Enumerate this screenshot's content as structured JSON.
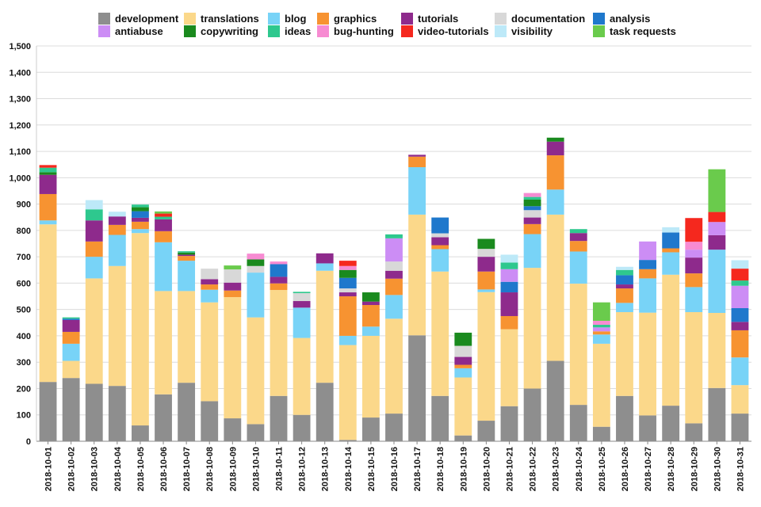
{
  "chart_data": {
    "type": "bar",
    "stacked": true,
    "title": "",
    "xlabel": "",
    "ylabel": "",
    "ylim": [
      0,
      1500
    ],
    "y_ticks": [
      "0",
      "100",
      "200",
      "300",
      "400",
      "500",
      "600",
      "700",
      "800",
      "900",
      "1,000",
      "1,100",
      "1,200",
      "1,300",
      "1,400",
      "1,500"
    ],
    "grid": true,
    "legend_position": "top",
    "categories": [
      "2018-10-01",
      "2018-10-02",
      "2018-10-03",
      "2018-10-04",
      "2018-10-05",
      "2018-10-06",
      "2018-10-07",
      "2018-10-08",
      "2018-10-09",
      "2018-10-10",
      "2018-10-11",
      "2018-10-12",
      "2018-10-13",
      "2018-10-14",
      "2018-10-15",
      "2018-10-16",
      "2018-10-17",
      "2018-10-18",
      "2018-10-19",
      "2018-10-20",
      "2018-10-21",
      "2018-10-22",
      "2018-10-23",
      "2018-10-24",
      "2018-10-25",
      "2018-10-26",
      "2018-10-27",
      "2018-10-28",
      "2018-10-29",
      "2018-10-30",
      "2018-10-31"
    ],
    "series": [
      {
        "name": "development",
        "color": "#8e8e8e",
        "values": [
          225,
          240,
          218,
          210,
          60,
          178,
          222,
          152,
          87,
          65,
          172,
          100,
          222,
          5,
          90,
          105,
          402,
          172,
          22,
          78,
          133,
          200,
          305,
          138,
          55,
          172,
          98,
          135,
          68,
          202,
          105
        ]
      },
      {
        "name": "translations",
        "color": "#fbd88a",
        "values": [
          598,
          65,
          400,
          455,
          730,
          392,
          348,
          375,
          460,
          405,
          402,
          292,
          425,
          360,
          310,
          360,
          458,
          472,
          220,
          488,
          292,
          458,
          555,
          460,
          315,
          318,
          390,
          497,
          422,
          285,
          108
        ]
      },
      {
        "name": "blog",
        "color": "#78d3f7",
        "values": [
          15,
          65,
          82,
          118,
          15,
          185,
          115,
          48,
          0,
          170,
          0,
          115,
          28,
          35,
          35,
          90,
          180,
          85,
          35,
          10,
          0,
          128,
          95,
          122,
          35,
          35,
          130,
          85,
          95,
          240,
          105
        ]
      },
      {
        "name": "graphics",
        "color": "#f79331",
        "values": [
          100,
          45,
          58,
          38,
          28,
          42,
          18,
          20,
          25,
          0,
          25,
          0,
          0,
          150,
          82,
          62,
          40,
          15,
          13,
          68,
          50,
          38,
          130,
          40,
          12,
          55,
          35,
          15,
          52,
          0,
          103
        ]
      },
      {
        "name": "tutorials",
        "color": "#8e2a8c",
        "values": [
          73,
          45,
          80,
          32,
          15,
          45,
          5,
          20,
          30,
          0,
          25,
          25,
          38,
          15,
          13,
          30,
          7,
          30,
          30,
          56,
          90,
          25,
          52,
          30,
          0,
          15,
          0,
          0,
          60,
          55,
          32
        ]
      },
      {
        "name": "documentation",
        "color": "#d8d8d8",
        "values": [
          0,
          0,
          0,
          0,
          0,
          0,
          0,
          40,
          50,
          25,
          0,
          30,
          0,
          15,
          0,
          35,
          0,
          15,
          42,
          30,
          0,
          28,
          0,
          0,
          0,
          0,
          0,
          0,
          0,
          0,
          0
        ]
      },
      {
        "name": "analysis",
        "color": "#1f78cc",
        "values": [
          0,
          5,
          0,
          0,
          25,
          0,
          0,
          0,
          0,
          0,
          48,
          0,
          0,
          40,
          0,
          0,
          0,
          60,
          0,
          0,
          40,
          15,
          0,
          0,
          0,
          35,
          35,
          60,
          0,
          0,
          52
        ]
      },
      {
        "name": "antiabuse",
        "color": "#cc8df5",
        "values": [
          0,
          0,
          0,
          0,
          0,
          0,
          0,
          0,
          0,
          0,
          0,
          0,
          0,
          0,
          0,
          88,
          0,
          0,
          0,
          0,
          48,
          0,
          0,
          0,
          15,
          0,
          70,
          0,
          30,
          50,
          85
        ]
      },
      {
        "name": "copywriting",
        "color": "#1a8a1e",
        "values": [
          10,
          0,
          0,
          0,
          15,
          0,
          8,
          0,
          0,
          25,
          0,
          0,
          0,
          30,
          35,
          0,
          0,
          0,
          50,
          38,
          0,
          25,
          15,
          0,
          0,
          0,
          0,
          0,
          0,
          0,
          0
        ]
      },
      {
        "name": "ideas",
        "color": "#2ec88e",
        "values": [
          17,
          5,
          42,
          0,
          10,
          10,
          5,
          0,
          0,
          0,
          0,
          5,
          0,
          0,
          0,
          15,
          0,
          0,
          0,
          0,
          25,
          10,
          0,
          15,
          10,
          20,
          0,
          0,
          0,
          0,
          20
        ]
      },
      {
        "name": "bug-hunting",
        "color": "#f78bd2",
        "values": [
          0,
          0,
          0,
          0,
          0,
          0,
          0,
          0,
          0,
          22,
          10,
          0,
          0,
          15,
          0,
          0,
          0,
          0,
          0,
          0,
          0,
          15,
          0,
          0,
          15,
          0,
          0,
          0,
          30,
          0,
          0
        ]
      },
      {
        "name": "video-tutorials",
        "color": "#f5281e",
        "values": [
          10,
          0,
          0,
          0,
          0,
          12,
          0,
          0,
          0,
          0,
          0,
          0,
          0,
          20,
          0,
          0,
          0,
          0,
          0,
          0,
          0,
          0,
          0,
          0,
          0,
          0,
          0,
          0,
          90,
          38,
          45
        ]
      },
      {
        "name": "visibility",
        "color": "#bde9f8",
        "values": [
          0,
          0,
          35,
          18,
          0,
          0,
          0,
          0,
          0,
          0,
          0,
          0,
          0,
          0,
          0,
          0,
          0,
          0,
          0,
          0,
          30,
          0,
          0,
          0,
          0,
          12,
          0,
          20,
          0,
          0,
          32
        ]
      },
      {
        "name": "task requests",
        "color": "#6acb4c",
        "values": [
          0,
          0,
          0,
          0,
          0,
          8,
          0,
          0,
          15,
          0,
          0,
          0,
          0,
          0,
          0,
          0,
          0,
          0,
          0,
          0,
          0,
          0,
          0,
          0,
          70,
          0,
          0,
          0,
          0,
          162,
          0
        ]
      }
    ]
  }
}
